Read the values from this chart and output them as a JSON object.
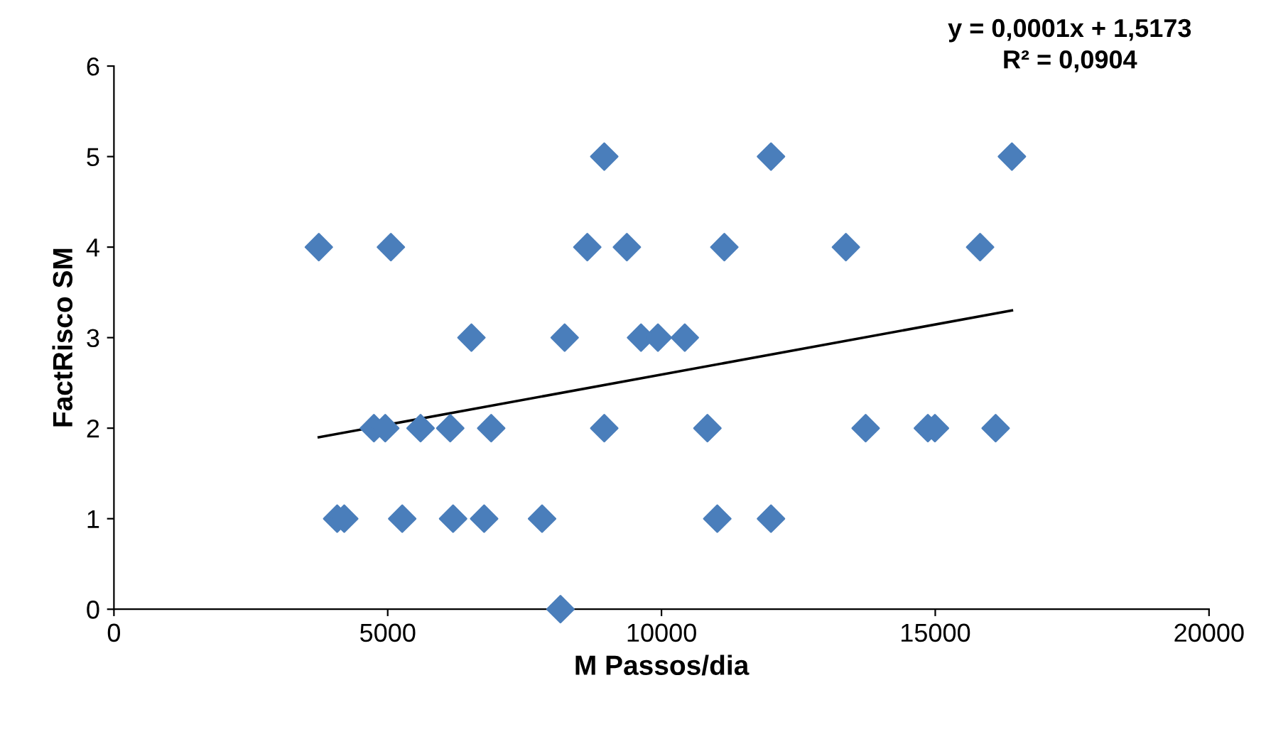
{
  "chart_data": {
    "type": "scatter",
    "xlabel": "M Passos/dia",
    "ylabel": "FactRisco SM",
    "annotations": [
      "y = 0,0001x + 1,5173\nR² = 0,0904"
    ],
    "xlim": [
      0,
      20000
    ],
    "ylim": [
      0,
      6
    ],
    "xticks": [
      0,
      5000,
      10000,
      15000,
      20000
    ],
    "yticks": [
      0,
      1,
      2,
      3,
      4,
      5,
      6
    ],
    "grid": false,
    "marker": "diamond",
    "series": [
      {
        "color": "#4a7ebb",
        "x": [
          3742,
          5058,
          8645,
          9368,
          11148,
          13368,
          15819,
          8955,
          12000,
          16400,
          6529,
          8232,
          9626,
          9935,
          10426,
          4748,
          4955,
          5600,
          6142,
          6890,
          8955,
          10839,
          13729,
          14865,
          14994,
          16103,
          4077,
          4206,
          5265,
          6194,
          6761,
          7819,
          11019,
          12000,
          8155
        ],
        "values": [
          4,
          4,
          4,
          4,
          4,
          4,
          4,
          5,
          5,
          5,
          3,
          3,
          3,
          3,
          3,
          2,
          2,
          2,
          2,
          2,
          2,
          2,
          2,
          2,
          2,
          2,
          1,
          1,
          1,
          1,
          1,
          1,
          1,
          1,
          0
        ]
      },
      {
        "type": "line",
        "color": "#000000",
        "x": [
          3742,
          16400
        ],
        "values": [
          1.9,
          3.3
        ],
        "marker": "none",
        "line_style": "solid"
      }
    ]
  }
}
